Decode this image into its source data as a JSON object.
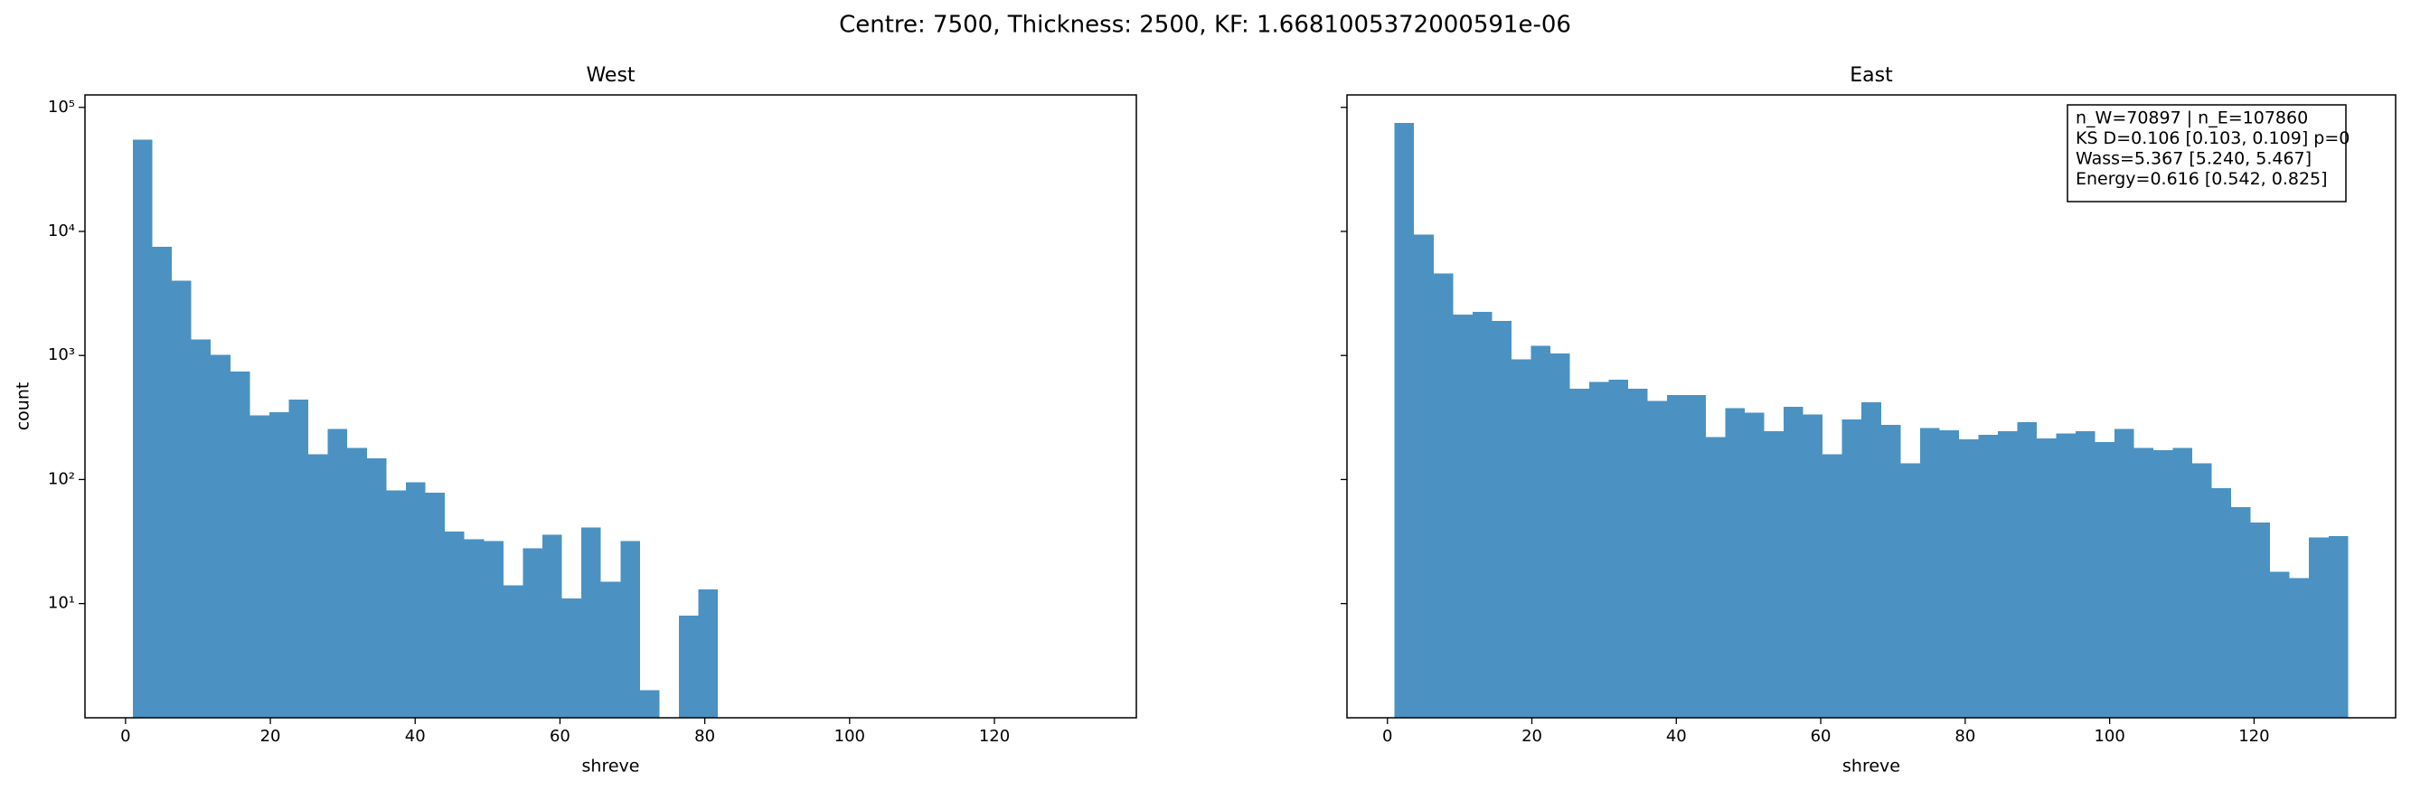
{
  "title": "Centre: 7500, Thickness: 2500, KF: 1.6681005372000591e-06",
  "chart_data": [
    {
      "type": "histogram",
      "title": "West",
      "xlabel": "shreve",
      "ylabel": "count",
      "color": "#4b92c3",
      "yscale": "log",
      "bins": [
        1,
        3.69,
        6.39,
        9.08,
        11.78,
        14.47,
        17.16,
        19.86,
        22.55,
        25.24,
        27.94,
        30.63,
        33.33,
        36.02,
        38.71,
        41.41,
        44.1,
        46.8,
        49.49,
        52.18,
        54.88,
        57.57,
        60.27,
        62.96,
        65.65,
        68.35,
        71.04,
        73.73,
        76.43,
        79.12,
        81.82,
        84.51,
        87.2,
        89.9,
        92.59,
        95.29,
        97.98,
        100.67,
        103.37,
        106.06,
        108.76,
        111.45,
        114.14,
        116.84,
        119.53,
        122.22,
        124.92,
        127.61,
        130.31,
        133
      ],
      "values": [
        55000,
        7500,
        4000,
        1350,
        1010,
        740,
        330,
        350,
        440,
        160,
        255,
        180,
        148,
        82,
        95,
        78,
        38,
        33,
        32,
        14,
        28,
        36,
        11,
        41,
        15,
        32,
        2,
        0,
        8,
        13,
        0,
        0,
        0,
        0,
        0,
        0,
        0,
        0,
        0,
        0,
        0,
        0,
        0,
        0,
        0,
        0,
        0,
        0,
        0
      ],
      "xlim": [
        -5.6,
        139.6
      ],
      "xticks": [
        0,
        20,
        40,
        60,
        80,
        100,
        120
      ],
      "ylim": [
        1.2,
        126000
      ],
      "yticks": [
        {
          "value": 10,
          "label": "10¹"
        },
        {
          "value": 100,
          "label": "10²"
        },
        {
          "value": 1000,
          "label": "10³"
        },
        {
          "value": 10000,
          "label": "10⁴"
        },
        {
          "value": 100000,
          "label": "10⁵"
        }
      ]
    },
    {
      "type": "histogram",
      "title": "East",
      "xlabel": "shreve",
      "color": "#4b92c3",
      "yscale": "log",
      "bins": [
        1,
        3.69,
        6.39,
        9.08,
        11.78,
        14.47,
        17.16,
        19.86,
        22.55,
        25.24,
        27.94,
        30.63,
        33.33,
        36.02,
        38.71,
        41.41,
        44.1,
        46.8,
        49.49,
        52.18,
        54.88,
        57.57,
        60.27,
        62.96,
        65.65,
        68.35,
        71.04,
        73.73,
        76.43,
        79.12,
        81.82,
        84.51,
        87.2,
        89.9,
        92.59,
        95.29,
        97.98,
        100.67,
        103.37,
        106.06,
        108.76,
        111.45,
        114.14,
        116.84,
        119.53,
        122.22,
        124.92,
        127.61,
        130.31,
        133
      ],
      "values": [
        75000,
        9400,
        4600,
        2130,
        2250,
        1900,
        930,
        1200,
        1040,
        540,
        610,
        640,
        540,
        430,
        480,
        480,
        220,
        375,
        345,
        245,
        385,
        335,
        160,
        305,
        420,
        275,
        135,
        260,
        250,
        210,
        230,
        245,
        290,
        215,
        235,
        245,
        200,
        255,
        180,
        173,
        180,
        135,
        85,
        60,
        45,
        18,
        16,
        34,
        35
      ],
      "xlim": [
        -5.6,
        139.6
      ],
      "xticks": [
        0,
        20,
        40,
        60,
        80,
        100,
        120
      ],
      "ylim": [
        1.2,
        126000
      ],
      "yticks": [
        10,
        100,
        1000,
        10000,
        100000
      ],
      "annotation": [
        "n_W=70897 | n_E=107860",
        "KS D=0.106 [0.103, 0.109]  p=0",
        "Wass=5.367 [5.240, 5.467]",
        "Energy=0.616 [0.542, 0.825]"
      ]
    }
  ]
}
